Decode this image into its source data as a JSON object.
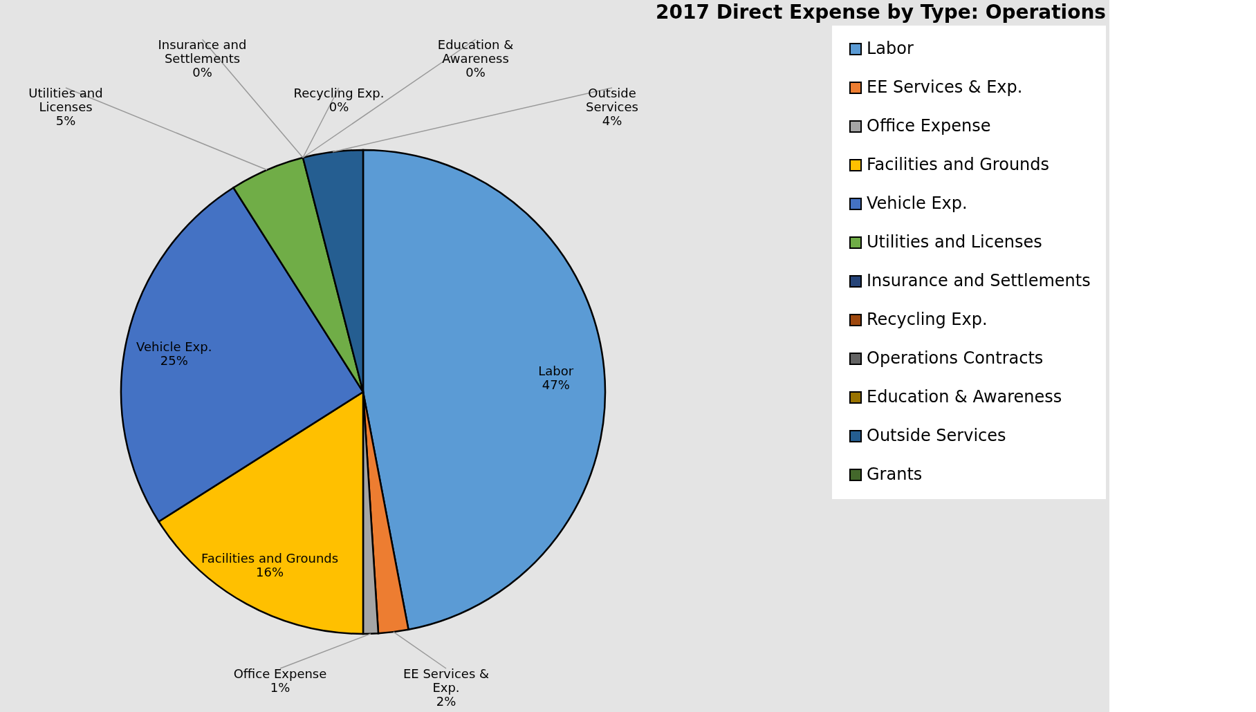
{
  "chart_data": {
    "type": "pie",
    "title": "2017 Direct Expense by Type:  Operations",
    "categories": [
      "Labor",
      "EE Services & Exp.",
      "Office Expense",
      "Facilities and Grounds",
      "Vehicle Exp.",
      "Utilities and Licenses",
      "Insurance and Settlements",
      "Recycling Exp.",
      "Operations Contracts",
      "Education & Awareness",
      "Outside Services",
      "Grants"
    ],
    "values": [
      47,
      2,
      1,
      16,
      25,
      5,
      0,
      0,
      0,
      0,
      4,
      0
    ],
    "value_labels": [
      "47%",
      "2%",
      "1%",
      "16%",
      "25%",
      "5%",
      "0%",
      "0%",
      null,
      "0%",
      "4%",
      null
    ],
    "colors": [
      "#5b9bd5",
      "#ed7d31",
      "#a5a5a5",
      "#ffc000",
      "#4472c4",
      "#70ad47",
      "#264478",
      "#9e480e",
      "#636363",
      "#997300",
      "#255e91",
      "#43682b"
    ],
    "legend": "right"
  }
}
